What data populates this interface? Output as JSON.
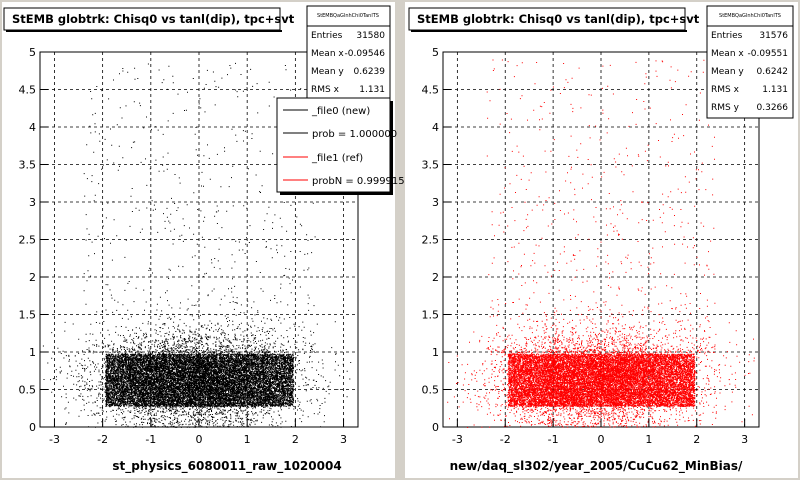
{
  "pads": [
    {
      "title": "StEMB globtrk: Chisq0 vs tanl(dip), tpc+svt",
      "stats": {
        "name": "StEMBQaGlnhChi0TanlTS",
        "rows": [
          {
            "label": "Entries",
            "value": "31580"
          },
          {
            "label": "Mean x",
            "value": "-0.09546"
          },
          {
            "label": "Mean y",
            "value": "0.6239"
          },
          {
            "label": "RMS x",
            "value": "1.131"
          }
        ]
      },
      "xlabel": "st_physics_6080011_raw_1020004",
      "legend": [
        {
          "label": "_file0 (new)",
          "color": "#000000"
        },
        {
          "label": "prob = 1.000000",
          "color": "#000000"
        },
        {
          "label": "_file1 (ref)",
          "color": "#ff0000"
        },
        {
          "label": "probN = 0.999915",
          "color": "#ff0000"
        }
      ]
    },
    {
      "title": "StEMB globtrk: Chisq0 vs tanl(dip), tpc+svt",
      "stats": {
        "name": "StEMBQaGlnhChi0TanlTS",
        "rows": [
          {
            "label": "Entries",
            "value": "31576"
          },
          {
            "label": "Mean x",
            "value": "-0.09551"
          },
          {
            "label": "Mean y",
            "value": "0.6242"
          },
          {
            "label": "RMS x",
            "value": "1.131"
          },
          {
            "label": "RMS y",
            "value": "0.3266"
          }
        ]
      },
      "xlabel": "new/daq_sl302/year_2005/CuCu62_MinBias/"
    }
  ],
  "chart_data": [
    {
      "type": "scatter",
      "title": "StEMB globtrk: Chisq0 vs tanl(dip), tpc+svt",
      "xlabel": "st_physics_6080011_raw_1020004",
      "ylabel": "",
      "xlim": [
        -3.3,
        3.3
      ],
      "ylim": [
        0,
        5
      ],
      "xticks": [
        -3,
        -2,
        -1,
        0,
        1,
        2,
        3
      ],
      "yticks": [
        0,
        0.5,
        1,
        1.5,
        2,
        2.5,
        3,
        3.5,
        4,
        4.5,
        5
      ],
      "grid": true,
      "series": [
        {
          "name": "_file0 (new)",
          "color": "#000000",
          "entries": 31580,
          "mean_x": -0.09546,
          "mean_y": 0.6239,
          "rms_x": 1.131
        }
      ]
    },
    {
      "type": "scatter",
      "title": "StEMB globtrk: Chisq0 vs tanl(dip), tpc+svt",
      "xlabel": "new/daq_sl302/year_2005/CuCu62_MinBias/",
      "ylabel": "",
      "xlim": [
        -3.3,
        3.3
      ],
      "ylim": [
        0,
        5
      ],
      "xticks": [
        -3,
        -2,
        -1,
        0,
        1,
        2,
        3
      ],
      "yticks": [
        0,
        0.5,
        1,
        1.5,
        2,
        2.5,
        3,
        3.5,
        4,
        4.5,
        5
      ],
      "grid": true,
      "series": [
        {
          "name": "_file1 (ref)",
          "color": "#ff0000",
          "entries": 31576,
          "mean_x": -0.09551,
          "mean_y": 0.6242,
          "rms_x": 1.131,
          "rms_y": 0.3266
        }
      ]
    }
  ]
}
